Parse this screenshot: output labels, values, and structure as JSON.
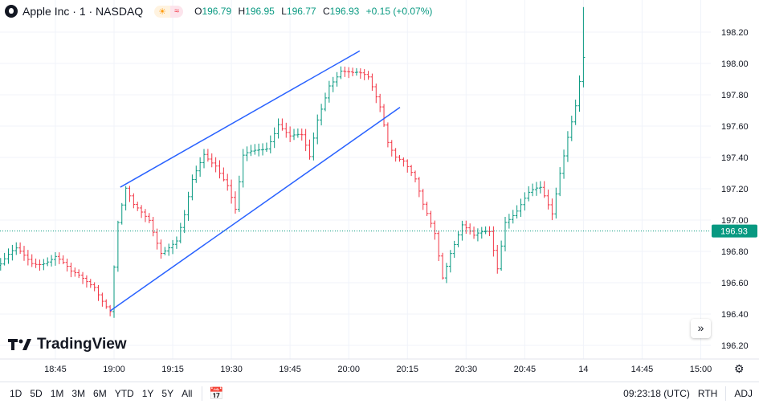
{
  "header": {
    "symbol": "Apple Inc · 1 · NASDAQ",
    "open_label": "O",
    "open": "196.79",
    "high_label": "H",
    "high": "196.95",
    "low_label": "L",
    "low": "196.77",
    "close_label": "C",
    "close": "196.93",
    "change": "+0.15 (+0.07%)",
    "session_icon": "sun-icon",
    "wave_icon": "≈"
  },
  "brand": "TradingView",
  "colors": {
    "up": "#089981",
    "down": "#f23645",
    "channel": "#2962ff",
    "grid": "#f0f3fa"
  },
  "chart_data": {
    "type": "candlestick-ohlc",
    "price_ticks": [
      "198.20",
      "198.00",
      "197.80",
      "197.60",
      "197.40",
      "197.20",
      "197.00",
      "196.80",
      "196.60",
      "196.40",
      "196.20"
    ],
    "ylim": [
      196.13,
      198.36
    ],
    "time_ticks": [
      {
        "label": "18:45",
        "min": -15
      },
      {
        "label": "19:00",
        "min": 0
      },
      {
        "label": "19:15",
        "min": 15
      },
      {
        "label": "19:30",
        "min": 30
      },
      {
        "label": "19:45",
        "min": 45
      },
      {
        "label": "20:00",
        "min": 60
      },
      {
        "label": "20:15",
        "min": 75
      },
      {
        "label": "20:30",
        "min": 90
      },
      {
        "label": "20:45",
        "min": 105
      },
      {
        "label": "14",
        "min": 120
      },
      {
        "label": "14:45",
        "min": 135
      },
      {
        "label": "15:00",
        "min": 150
      }
    ],
    "close_keypoints_min_price": [
      [
        -29,
        196.71
      ],
      [
        -25,
        196.79
      ],
      [
        -21,
        196.74
      ],
      [
        -15,
        196.77
      ],
      [
        -11,
        196.64
      ],
      [
        -5,
        196.6
      ],
      [
        -1,
        196.43
      ],
      [
        1,
        196.97
      ],
      [
        3,
        197.17
      ],
      [
        5,
        197.07
      ],
      [
        9,
        197.02
      ],
      [
        12,
        196.82
      ],
      [
        16,
        196.85
      ],
      [
        18,
        197.0
      ],
      [
        20,
        197.23
      ],
      [
        23,
        197.43
      ],
      [
        26,
        197.38
      ],
      [
        29,
        197.23
      ],
      [
        31,
        197.05
      ],
      [
        33,
        197.38
      ],
      [
        36,
        197.43
      ],
      [
        39,
        197.48
      ],
      [
        42,
        197.64
      ],
      [
        45,
        197.53
      ],
      [
        48,
        197.51
      ],
      [
        50,
        197.38
      ],
      [
        52,
        197.64
      ],
      [
        55,
        197.89
      ],
      [
        58,
        197.97
      ],
      [
        61,
        197.92
      ],
      [
        65,
        197.89
      ],
      [
        68,
        197.74
      ],
      [
        70,
        197.53
      ],
      [
        72,
        197.43
      ],
      [
        74,
        197.38
      ],
      [
        77,
        197.23
      ],
      [
        79,
        197.07
      ],
      [
        82,
        196.92
      ],
      [
        84,
        196.66
      ],
      [
        86,
        196.82
      ],
      [
        89,
        196.97
      ],
      [
        92,
        196.87
      ],
      [
        96,
        196.92
      ],
      [
        98,
        196.71
      ],
      [
        100,
        197.02
      ],
      [
        103,
        197.07
      ],
      [
        106,
        197.15
      ],
      [
        109,
        197.18
      ],
      [
        112,
        197.05
      ],
      [
        114,
        197.33
      ],
      [
        116,
        197.56
      ],
      [
        118,
        197.74
      ],
      [
        120,
        198.02
      ]
    ],
    "last_price": "196.93",
    "channel": {
      "upper": [
        [
          1.6,
          197.21
        ],
        [
          62.8,
          198.08
        ]
      ],
      "lower": [
        [
          -1,
          196.42
        ],
        [
          73.1,
          197.72
        ]
      ]
    }
  },
  "time_range": {
    "options": [
      "1D",
      "5D",
      "1M",
      "3M",
      "6M",
      "YTD",
      "1Y",
      "5Y",
      "All"
    ]
  },
  "status": {
    "time": "09:23:18 (UTC)",
    "rth": "RTH",
    "adj": "ADJ"
  }
}
